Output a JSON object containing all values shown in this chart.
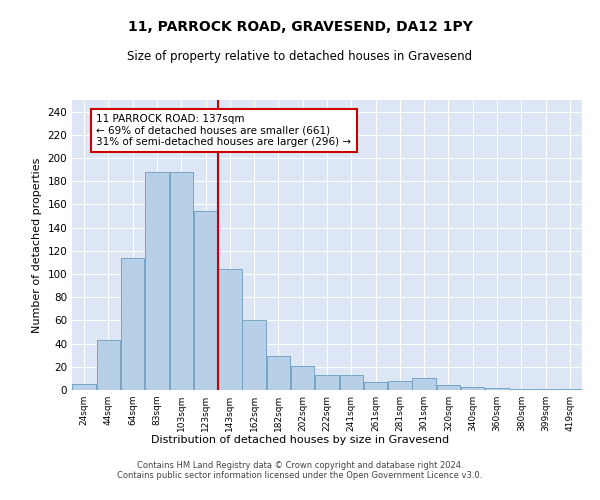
{
  "title": "11, PARROCK ROAD, GRAVESEND, DA12 1PY",
  "subtitle": "Size of property relative to detached houses in Gravesend",
  "xlabel": "Distribution of detached houses by size in Gravesend",
  "ylabel": "Number of detached properties",
  "categories": [
    "24sqm",
    "44sqm",
    "64sqm",
    "83sqm",
    "103sqm",
    "123sqm",
    "143sqm",
    "162sqm",
    "182sqm",
    "202sqm",
    "222sqm",
    "241sqm",
    "261sqm",
    "281sqm",
    "301sqm",
    "320sqm",
    "340sqm",
    "360sqm",
    "380sqm",
    "399sqm",
    "419sqm"
  ],
  "bar_heights": [
    5,
    43,
    114,
    188,
    188,
    154,
    104,
    60,
    29,
    21,
    13,
    13,
    7,
    8,
    10,
    4,
    3,
    2,
    1,
    1,
    1
  ],
  "bar_color": "#b8cfe8",
  "bar_edge_color": "#6a9cc0",
  "background_color": "#dce6f5",
  "annotation_text": "11 PARROCK ROAD: 137sqm\n← 69% of detached houses are smaller (661)\n31% of semi-detached houses are larger (296) →",
  "annotation_box_color": "#ffffff",
  "annotation_box_edge_color": "#cc0000",
  "vline_color": "#cc0000",
  "ylim": [
    0,
    250
  ],
  "yticks": [
    0,
    20,
    40,
    60,
    80,
    100,
    120,
    140,
    160,
    180,
    200,
    220,
    240
  ],
  "footer_line1": "Contains HM Land Registry data © Crown copyright and database right 2024.",
  "footer_line2": "Contains public sector information licensed under the Open Government Licence v3.0.",
  "vline_pos": 5.5
}
